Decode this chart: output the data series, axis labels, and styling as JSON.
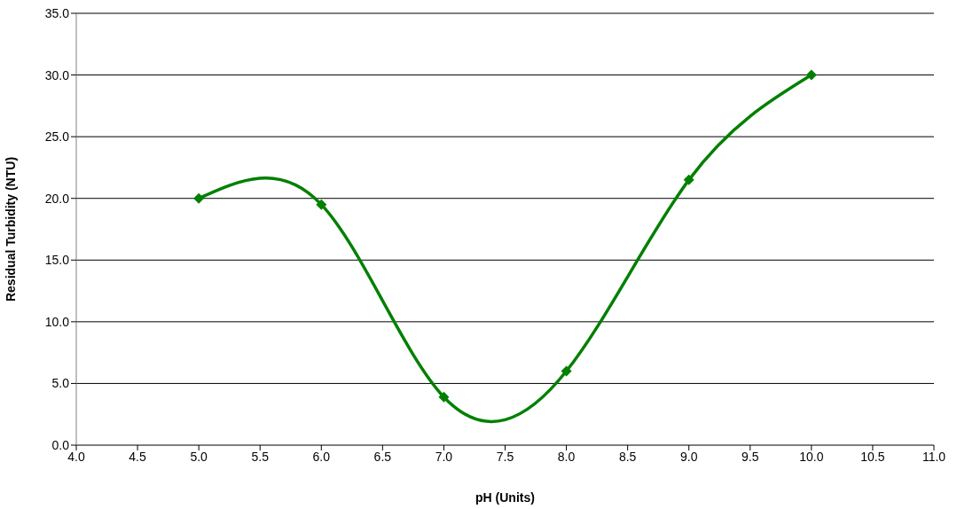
{
  "chart_data": {
    "type": "line",
    "xlabel": "pH (Units)",
    "ylabel": "Residual Turbidity (NTU)",
    "x": [
      5,
      6,
      7,
      8,
      9,
      10
    ],
    "series": [
      {
        "color": "#008000",
        "values": [
          20,
          19.5,
          3.9,
          6,
          21.5,
          30
        ]
      }
    ],
    "xlim": [
      4,
      11
    ],
    "xticks": [
      {
        "value": 4,
        "label": "4.0"
      },
      {
        "value": 4.5,
        "label": "4.5"
      },
      {
        "value": 5,
        "label": "5.0"
      },
      {
        "value": 5.5,
        "label": "5.5"
      },
      {
        "value": 6,
        "label": "6.0"
      },
      {
        "value": 6.5,
        "label": "6.5"
      },
      {
        "value": 7,
        "label": "7.0"
      },
      {
        "value": 7.5,
        "label": "7.5"
      },
      {
        "value": 8,
        "label": "8.0"
      },
      {
        "value": 8.5,
        "label": "8.5"
      },
      {
        "value": 9,
        "label": "9.0"
      },
      {
        "value": 9.5,
        "label": "9.5"
      },
      {
        "value": 10,
        "label": "10.0"
      },
      {
        "value": 10.5,
        "label": "10.5"
      },
      {
        "value": 11,
        "label": "11.0"
      }
    ],
    "ylim": [
      0,
      35
    ],
    "yticks": [
      {
        "value": 0,
        "label": "0.0"
      },
      {
        "value": 5,
        "label": "5.0"
      },
      {
        "value": 10,
        "label": "10.0"
      },
      {
        "value": 15,
        "label": "15.0"
      },
      {
        "value": 20,
        "label": "20.0"
      },
      {
        "value": 25,
        "label": "25.0"
      },
      {
        "value": 30,
        "label": "30.0"
      },
      {
        "value": 35,
        "label": "35.0"
      }
    ],
    "grid": "y",
    "marker": "diamond",
    "line_style": "solid"
  }
}
